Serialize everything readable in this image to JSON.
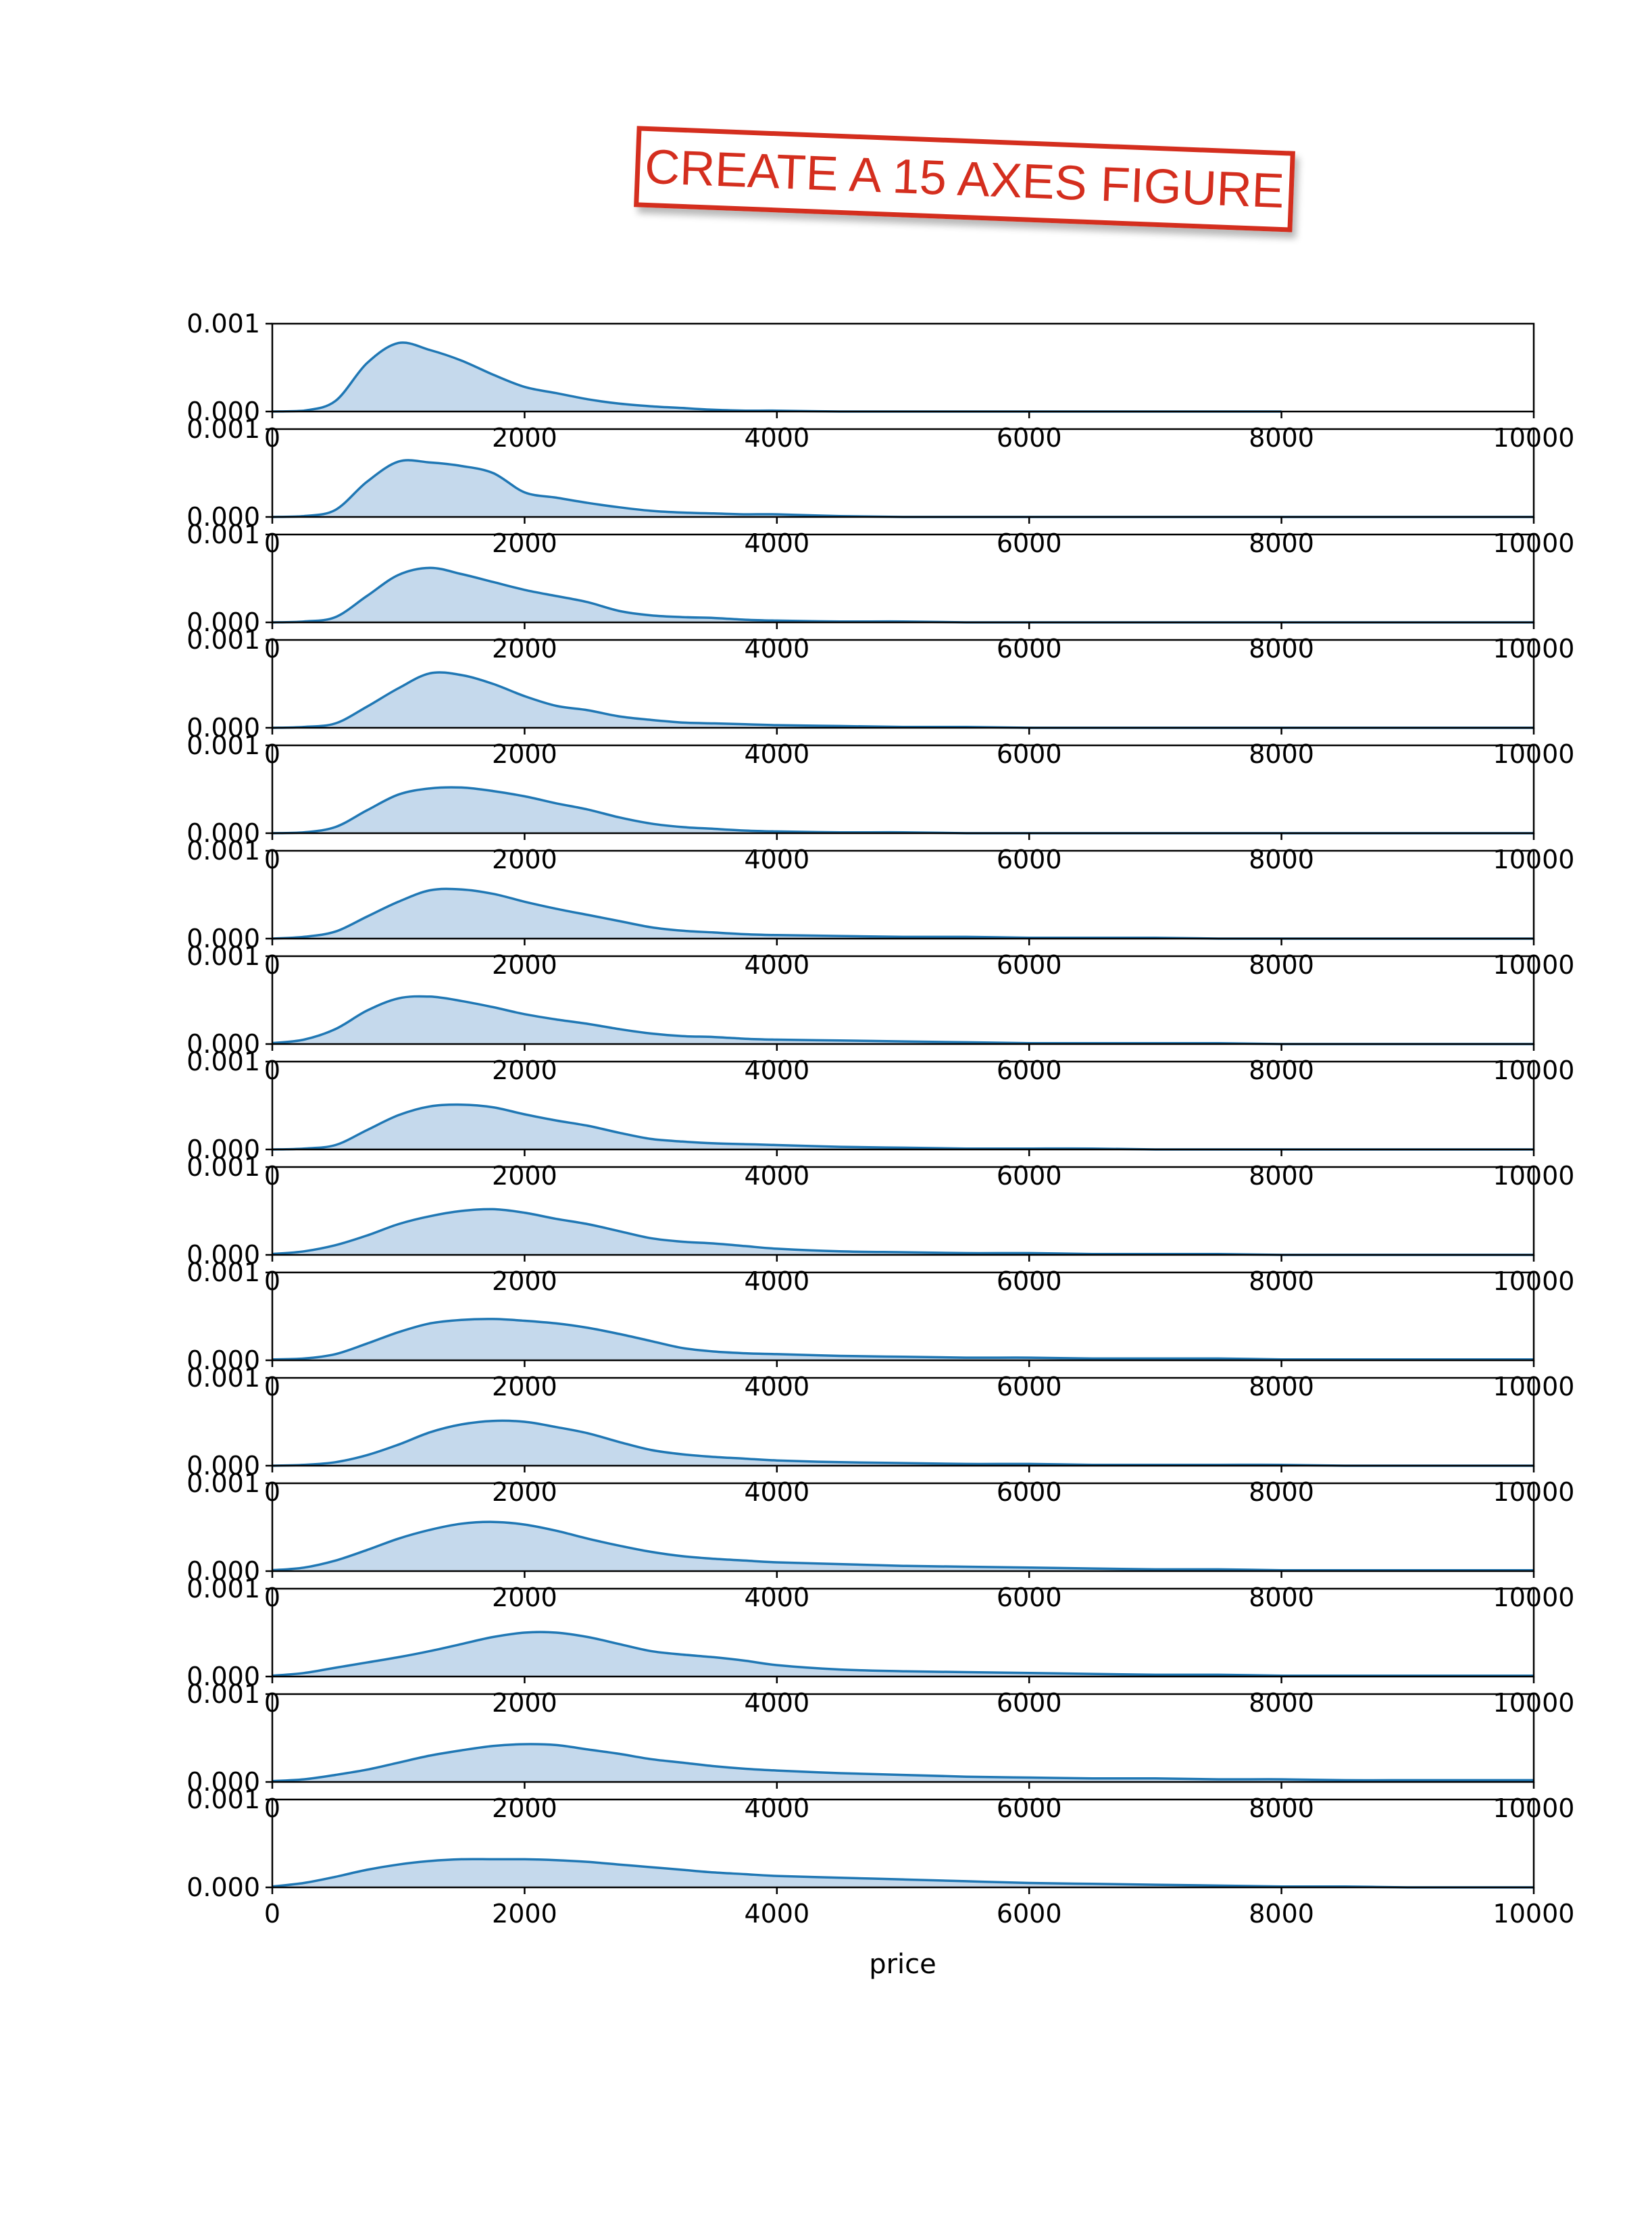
{
  "stamp": {
    "text": "CREATE A 15 AXES FIGURE"
  },
  "colors": {
    "line": "#1f77b4",
    "fill": "#c5d9ec",
    "axis": "#000000"
  },
  "chart_data": {
    "type": "area",
    "layout": "15 stacked subplots sharing x axis",
    "xlabel": "price",
    "ylabel": "",
    "xlim": [
      0,
      10000
    ],
    "ylim": [
      0,
      0.001
    ],
    "xticks": [
      0,
      2000,
      4000,
      6000,
      8000,
      10000
    ],
    "xtick_labels": [
      "0",
      "2000",
      "4000",
      "6000",
      "8000",
      "10000"
    ],
    "yticks": [
      0,
      0.001
    ],
    "ytick_labels": [
      "0.000",
      "0.001"
    ],
    "grid": false,
    "x": [
      0,
      250,
      500,
      750,
      1000,
      1250,
      1500,
      1750,
      2000,
      2250,
      2500,
      2750,
      3000,
      3250,
      3500,
      3750,
      4000,
      4500,
      5000,
      5500,
      6000,
      6500,
      7000,
      7500,
      8000,
      8500,
      9000,
      9500,
      10000
    ],
    "series": [
      {
        "values": [
          0,
          1e-05,
          0.00012,
          0.00055,
          0.00078,
          0.0007,
          0.00058,
          0.00042,
          0.00028,
          0.00021,
          0.00014,
          9e-05,
          6e-05,
          4e-05,
          2e-05,
          1e-05,
          1e-05,
          0,
          0,
          0,
          0,
          0,
          0,
          0,
          0,
          null,
          null,
          null,
          null
        ]
      },
      {
        "values": [
          0,
          1e-05,
          8e-05,
          0.0004,
          0.00063,
          0.00062,
          0.00058,
          0.0005,
          0.00028,
          0.00022,
          0.00016,
          0.00011,
          7e-05,
          5e-05,
          4e-05,
          3e-05,
          3e-05,
          1e-05,
          0,
          0,
          0,
          0,
          0,
          0,
          0,
          0,
          0,
          0,
          0
        ]
      },
      {
        "values": [
          0,
          1e-05,
          6e-05,
          0.0003,
          0.00054,
          0.00062,
          0.00055,
          0.00046,
          0.00037,
          0.0003,
          0.00023,
          0.00013,
          8e-05,
          6e-05,
          5e-05,
          3e-05,
          2e-05,
          1e-05,
          1e-05,
          0,
          0,
          0,
          0,
          0,
          0,
          0,
          0,
          0,
          0
        ]
      },
      {
        "values": [
          0,
          1e-05,
          5e-05,
          0.00024,
          0.00045,
          0.00062,
          0.0006,
          0.0005,
          0.00036,
          0.00025,
          0.0002,
          0.00013,
          9e-05,
          6e-05,
          5e-05,
          4e-05,
          3e-05,
          2e-05,
          1e-05,
          1e-05,
          0,
          0,
          0,
          0,
          0,
          0,
          0,
          0,
          0
        ]
      },
      {
        "values": [
          0,
          1e-05,
          7e-05,
          0.00026,
          0.00044,
          0.00051,
          0.00052,
          0.00048,
          0.00042,
          0.00034,
          0.00027,
          0.00018,
          0.00011,
          7e-05,
          5e-05,
          3e-05,
          2e-05,
          1e-05,
          1e-05,
          0,
          0,
          0,
          0,
          0,
          0,
          0,
          0,
          0,
          0
        ]
      },
      {
        "values": [
          0,
          2e-05,
          8e-05,
          0.00025,
          0.00042,
          0.00055,
          0.00056,
          0.00051,
          0.00042,
          0.00034,
          0.00027,
          0.0002,
          0.00013,
          9e-05,
          7e-05,
          5e-05,
          4e-05,
          3e-05,
          2e-05,
          2e-05,
          1e-05,
          1e-05,
          1e-05,
          0,
          0,
          0,
          0,
          0,
          0
        ]
      },
      {
        "values": [
          1e-05,
          5e-05,
          0.00017,
          0.00038,
          0.00052,
          0.00054,
          0.00049,
          0.00042,
          0.00034,
          0.00028,
          0.00023,
          0.00017,
          0.00012,
          9e-05,
          8e-05,
          6e-05,
          5e-05,
          4e-05,
          3e-05,
          2e-05,
          1e-05,
          1e-05,
          1e-05,
          1e-05,
          0,
          0,
          0,
          0,
          0
        ]
      },
      {
        "values": [
          0,
          1e-05,
          5e-05,
          0.00022,
          0.00039,
          0.00049,
          0.00051,
          0.00048,
          0.0004,
          0.00033,
          0.00027,
          0.00019,
          0.00012,
          9e-05,
          7e-05,
          6e-05,
          5e-05,
          3e-05,
          2e-05,
          1e-05,
          1e-05,
          1e-05,
          0,
          0,
          0,
          0,
          0,
          0,
          0
        ]
      },
      {
        "values": [
          1e-05,
          4e-05,
          0.00011,
          0.00022,
          0.00035,
          0.00044,
          0.0005,
          0.00052,
          0.00048,
          0.00041,
          0.00035,
          0.00027,
          0.00019,
          0.00015,
          0.00013,
          0.0001,
          7e-05,
          4e-05,
          3e-05,
          2e-05,
          2e-05,
          1e-05,
          1e-05,
          1e-05,
          0,
          0,
          0,
          0,
          0
        ]
      },
      {
        "values": [
          1e-05,
          2e-05,
          7e-05,
          0.00019,
          0.00032,
          0.00042,
          0.00046,
          0.00047,
          0.00045,
          0.00042,
          0.00037,
          0.0003,
          0.00022,
          0.00014,
          0.0001,
          8e-05,
          7e-05,
          5e-05,
          4e-05,
          3e-05,
          3e-05,
          2e-05,
          2e-05,
          2e-05,
          1e-05,
          1e-05,
          1e-05,
          1e-05,
          1e-05
        ]
      },
      {
        "values": [
          0,
          1e-05,
          4e-05,
          0.00012,
          0.00024,
          0.00038,
          0.00047,
          0.00051,
          0.0005,
          0.00044,
          0.00037,
          0.00027,
          0.00018,
          0.00013,
          0.0001,
          8e-05,
          6e-05,
          4e-05,
          3e-05,
          2e-05,
          2e-05,
          1e-05,
          1e-05,
          1e-05,
          1e-05,
          0,
          0,
          0,
          0
        ]
      },
      {
        "values": [
          1e-05,
          4e-05,
          0.00012,
          0.00024,
          0.00037,
          0.00047,
          0.00054,
          0.00056,
          0.00053,
          0.00046,
          0.00037,
          0.00029,
          0.00022,
          0.00017,
          0.00014,
          0.00012,
          0.0001,
          8e-05,
          6e-05,
          5e-05,
          4e-05,
          3e-05,
          2e-05,
          2e-05,
          1e-05,
          1e-05,
          1e-05,
          1e-05,
          1e-05
        ]
      },
      {
        "values": [
          1e-05,
          4e-05,
          0.0001,
          0.00016,
          0.00022,
          0.00029,
          0.00037,
          0.00045,
          0.0005,
          0.0005,
          0.00045,
          0.00037,
          0.00029,
          0.00025,
          0.00022,
          0.00018,
          0.00013,
          8e-05,
          6e-05,
          5e-05,
          4e-05,
          3e-05,
          2e-05,
          2e-05,
          1e-05,
          1e-05,
          1e-05,
          1e-05,
          1e-05
        ]
      },
      {
        "values": [
          1e-05,
          3e-05,
          8e-05,
          0.00014,
          0.00022,
          0.0003,
          0.00036,
          0.00041,
          0.00043,
          0.00042,
          0.00037,
          0.00032,
          0.00026,
          0.00022,
          0.00018,
          0.00015,
          0.00013,
          0.0001,
          8e-05,
          6e-05,
          5e-05,
          4e-05,
          4e-05,
          3e-05,
          3e-05,
          2e-05,
          2e-05,
          2e-05,
          2e-05
        ]
      },
      {
        "values": [
          1e-05,
          5e-05,
          0.00012,
          0.0002,
          0.00026,
          0.0003,
          0.00032,
          0.00032,
          0.00032,
          0.00031,
          0.00029,
          0.00026,
          0.00023,
          0.0002,
          0.00017,
          0.00015,
          0.00013,
          0.00011,
          9e-05,
          7e-05,
          5e-05,
          4e-05,
          3e-05,
          2e-05,
          1e-05,
          1e-05,
          0,
          0,
          0
        ]
      }
    ]
  }
}
